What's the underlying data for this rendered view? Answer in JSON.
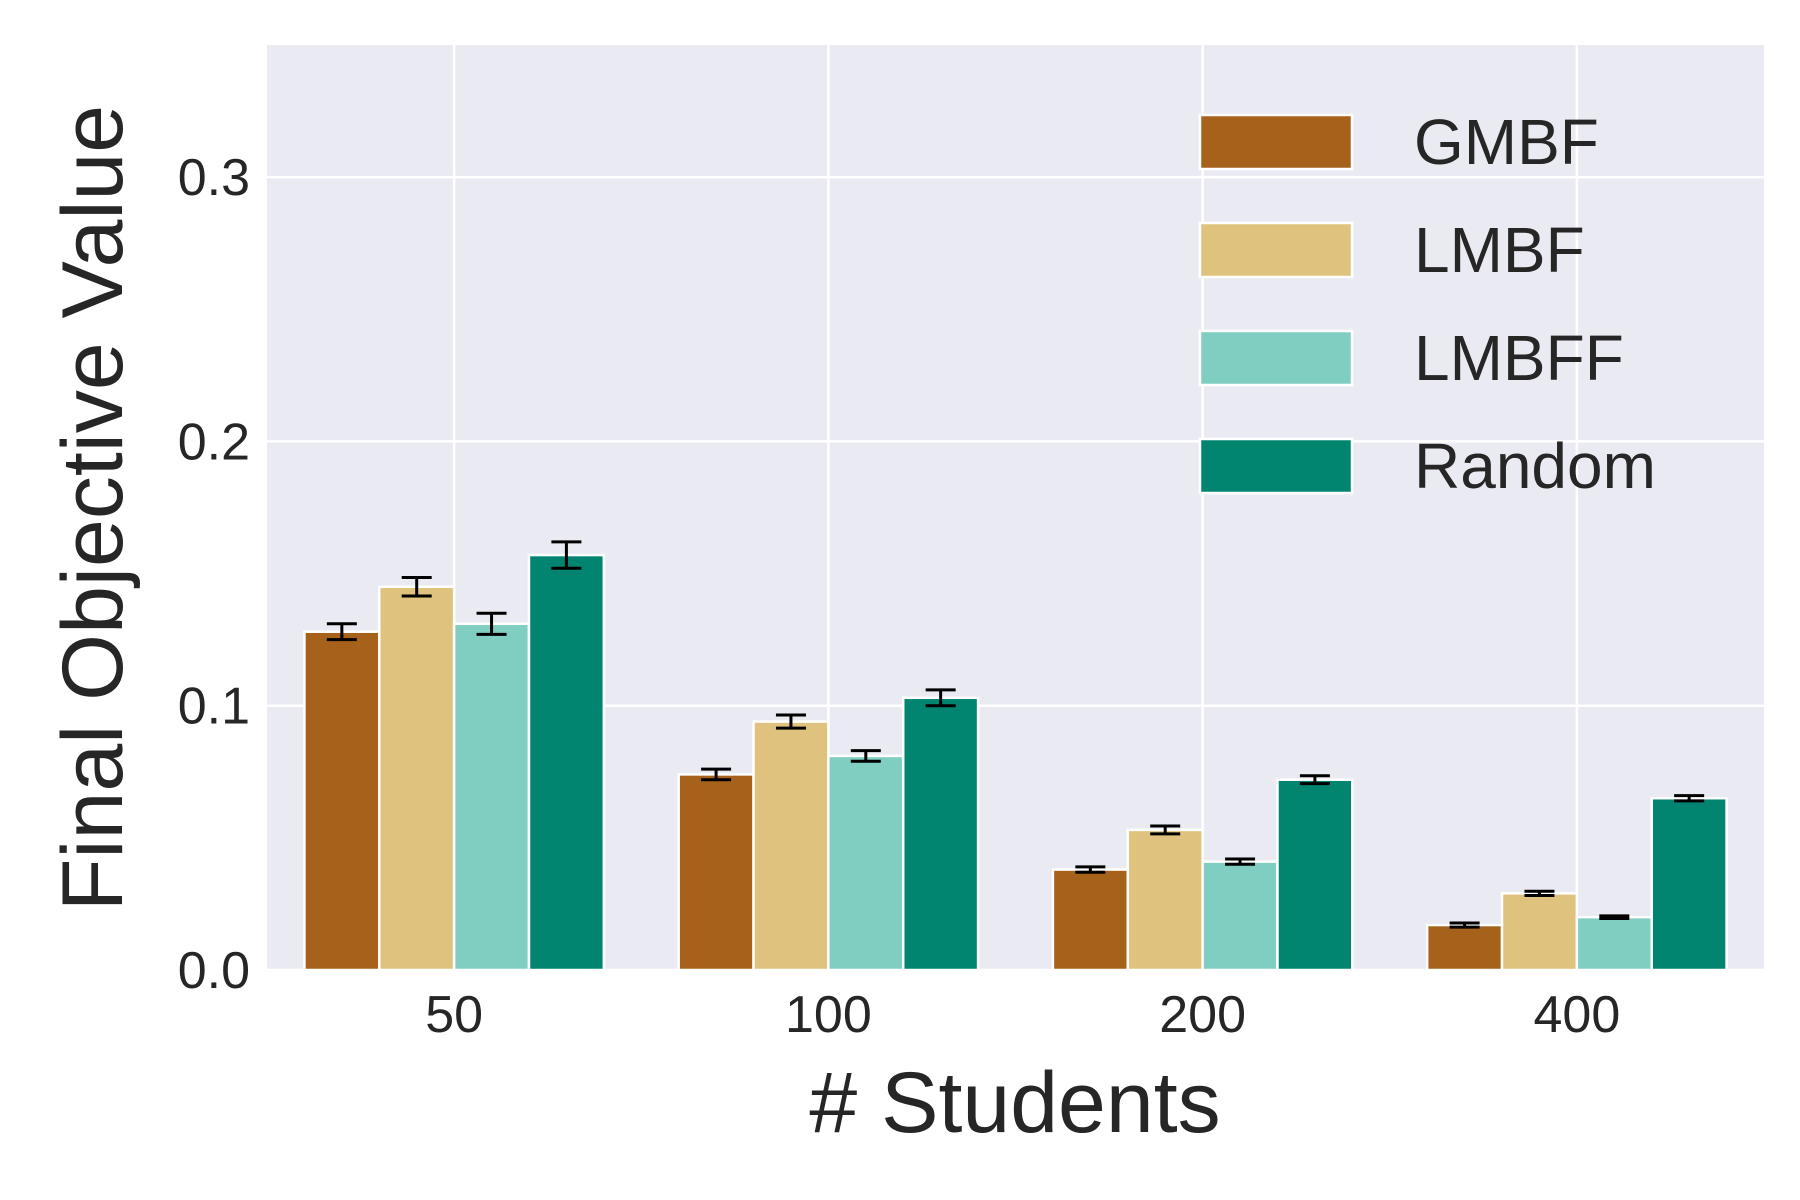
{
  "chart_data": {
    "type": "bar",
    "title": "",
    "xlabel": "# Students",
    "ylabel": "Final Objective Value",
    "categories": [
      "50",
      "100",
      "200",
      "400"
    ],
    "ylim": [
      0,
      0.35
    ],
    "yticks": [
      "0.0",
      "0.1",
      "0.2",
      "0.3"
    ],
    "grid": true,
    "legend_position": "top-right",
    "series": [
      {
        "name": "GMBF",
        "color": "#a6611a",
        "values": [
          0.128,
          0.074,
          0.038,
          0.017
        ],
        "errors": [
          0.003,
          0.002,
          0.001,
          0.0008
        ]
      },
      {
        "name": "LMBF",
        "color": "#dfc27d",
        "values": [
          0.145,
          0.094,
          0.053,
          0.029
        ],
        "errors": [
          0.0035,
          0.0025,
          0.0015,
          0.0008
        ]
      },
      {
        "name": "LMBFF",
        "color": "#80cdc1",
        "values": [
          0.131,
          0.081,
          0.041,
          0.02
        ],
        "errors": [
          0.004,
          0.002,
          0.001,
          0.0005
        ]
      },
      {
        "name": "Random",
        "color": "#018571",
        "values": [
          0.157,
          0.103,
          0.072,
          0.065
        ],
        "errors": [
          0.005,
          0.003,
          0.0015,
          0.001
        ]
      }
    ]
  }
}
